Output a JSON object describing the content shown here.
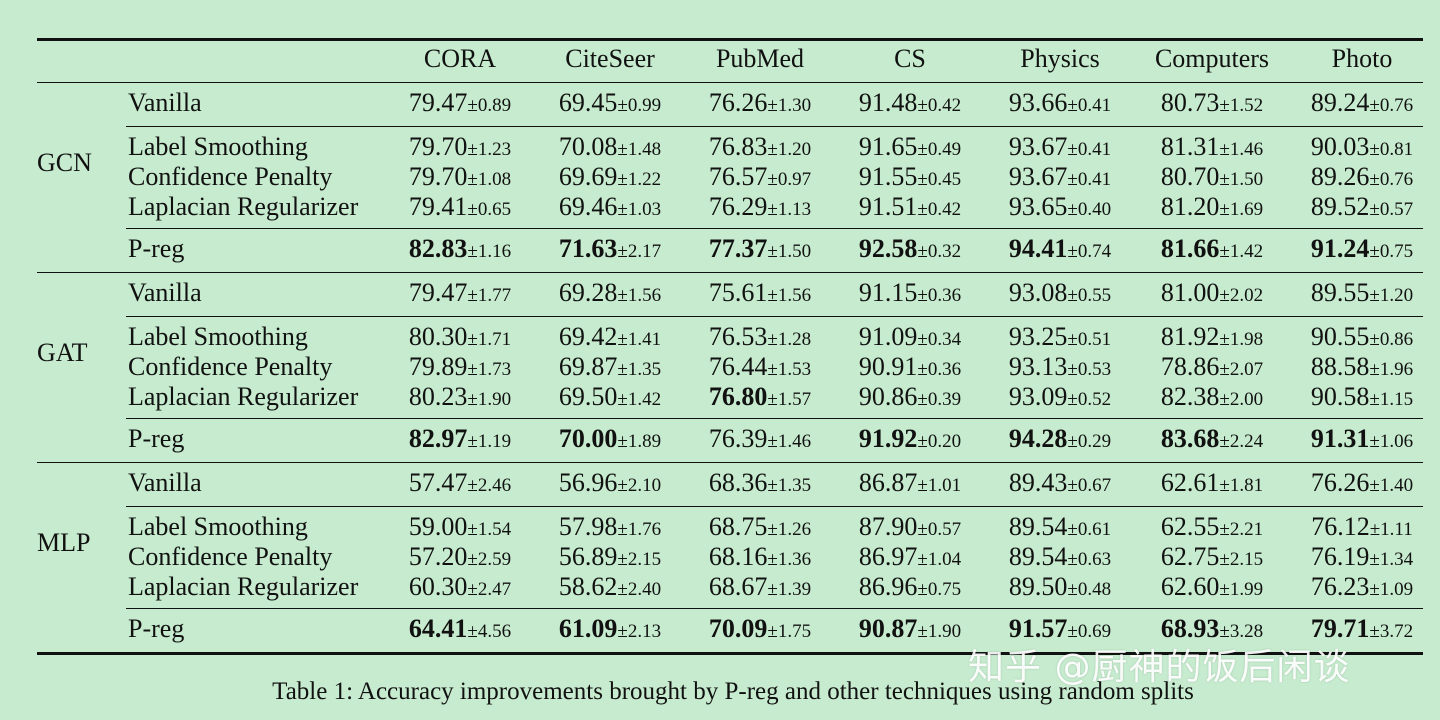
{
  "table": {
    "columns": [
      "CORA",
      "CiteSeer",
      "PubMed",
      "CS",
      "Physics",
      "Computers",
      "Photo"
    ],
    "groups": [
      {
        "name": "GCN",
        "rows": [
          {
            "method": "Vanilla",
            "cells": [
              {
                "mean": "79.47",
                "sd": "±0.89"
              },
              {
                "mean": "69.45",
                "sd": "±0.99"
              },
              {
                "mean": "76.26",
                "sd": "±1.30"
              },
              {
                "mean": "91.48",
                "sd": "±0.42"
              },
              {
                "mean": "93.66",
                "sd": "±0.41"
              },
              {
                "mean": "80.73",
                "sd": "±1.52"
              },
              {
                "mean": "89.24",
                "sd": "±0.76"
              }
            ]
          },
          {
            "method": "Label Smoothing",
            "cells": [
              {
                "mean": "79.70",
                "sd": "±1.23"
              },
              {
                "mean": "70.08",
                "sd": "±1.48"
              },
              {
                "mean": "76.83",
                "sd": "±1.20"
              },
              {
                "mean": "91.65",
                "sd": "±0.49"
              },
              {
                "mean": "93.67",
                "sd": "±0.41"
              },
              {
                "mean": "81.31",
                "sd": "±1.46"
              },
              {
                "mean": "90.03",
                "sd": "±0.81"
              }
            ]
          },
          {
            "method": "Confidence Penalty",
            "cells": [
              {
                "mean": "79.70",
                "sd": "±1.08"
              },
              {
                "mean": "69.69",
                "sd": "±1.22"
              },
              {
                "mean": "76.57",
                "sd": "±0.97"
              },
              {
                "mean": "91.55",
                "sd": "±0.45"
              },
              {
                "mean": "93.67",
                "sd": "±0.41"
              },
              {
                "mean": "80.70",
                "sd": "±1.50"
              },
              {
                "mean": "89.26",
                "sd": "±0.76"
              }
            ]
          },
          {
            "method": "Laplacian Regularizer",
            "cells": [
              {
                "mean": "79.41",
                "sd": "±0.65"
              },
              {
                "mean": "69.46",
                "sd": "±1.03"
              },
              {
                "mean": "76.29",
                "sd": "±1.13"
              },
              {
                "mean": "91.51",
                "sd": "±0.42"
              },
              {
                "mean": "93.65",
                "sd": "±0.40"
              },
              {
                "mean": "81.20",
                "sd": "±1.69"
              },
              {
                "mean": "89.52",
                "sd": "±0.57"
              }
            ]
          },
          {
            "method": "P-reg",
            "cells": [
              {
                "mean": "82.83",
                "sd": "±1.16",
                "bold": true
              },
              {
                "mean": "71.63",
                "sd": "±2.17",
                "bold": true
              },
              {
                "mean": "77.37",
                "sd": "±1.50",
                "bold": true
              },
              {
                "mean": "92.58",
                "sd": "±0.32",
                "bold": true
              },
              {
                "mean": "94.41",
                "sd": "±0.74",
                "bold": true
              },
              {
                "mean": "81.66",
                "sd": "±1.42",
                "bold": true
              },
              {
                "mean": "91.24",
                "sd": "±0.75",
                "bold": true
              }
            ]
          }
        ]
      },
      {
        "name": "GAT",
        "rows": [
          {
            "method": "Vanilla",
            "cells": [
              {
                "mean": "79.47",
                "sd": "±1.77"
              },
              {
                "mean": "69.28",
                "sd": "±1.56"
              },
              {
                "mean": "75.61",
                "sd": "±1.56"
              },
              {
                "mean": "91.15",
                "sd": "±0.36"
              },
              {
                "mean": "93.08",
                "sd": "±0.55"
              },
              {
                "mean": "81.00",
                "sd": "±2.02"
              },
              {
                "mean": "89.55",
                "sd": "±1.20"
              }
            ]
          },
          {
            "method": "Label Smoothing",
            "cells": [
              {
                "mean": "80.30",
                "sd": "±1.71"
              },
              {
                "mean": "69.42",
                "sd": "±1.41"
              },
              {
                "mean": "76.53",
                "sd": "±1.28"
              },
              {
                "mean": "91.09",
                "sd": "±0.34"
              },
              {
                "mean": "93.25",
                "sd": "±0.51"
              },
              {
                "mean": "81.92",
                "sd": "±1.98"
              },
              {
                "mean": "90.55",
                "sd": "±0.86"
              }
            ]
          },
          {
            "method": "Confidence Penalty",
            "cells": [
              {
                "mean": "79.89",
                "sd": "±1.73"
              },
              {
                "mean": "69.87",
                "sd": "±1.35"
              },
              {
                "mean": "76.44",
                "sd": "±1.53"
              },
              {
                "mean": "90.91",
                "sd": "±0.36"
              },
              {
                "mean": "93.13",
                "sd": "±0.53"
              },
              {
                "mean": "78.86",
                "sd": "±2.07"
              },
              {
                "mean": "88.58",
                "sd": "±1.96"
              }
            ]
          },
          {
            "method": "Laplacian Regularizer",
            "cells": [
              {
                "mean": "80.23",
                "sd": "±1.90"
              },
              {
                "mean": "69.50",
                "sd": "±1.42"
              },
              {
                "mean": "76.80",
                "sd": "±1.57",
                "bold": true
              },
              {
                "mean": "90.86",
                "sd": "±0.39"
              },
              {
                "mean": "93.09",
                "sd": "±0.52"
              },
              {
                "mean": "82.38",
                "sd": "±2.00"
              },
              {
                "mean": "90.58",
                "sd": "±1.15"
              }
            ]
          },
          {
            "method": "P-reg",
            "cells": [
              {
                "mean": "82.97",
                "sd": "±1.19",
                "bold": true
              },
              {
                "mean": "70.00",
                "sd": "±1.89",
                "bold": true
              },
              {
                "mean": "76.39",
                "sd": "±1.46"
              },
              {
                "mean": "91.92",
                "sd": "±0.20",
                "bold": true
              },
              {
                "mean": "94.28",
                "sd": "±0.29",
                "bold": true
              },
              {
                "mean": "83.68",
                "sd": "±2.24",
                "bold": true
              },
              {
                "mean": "91.31",
                "sd": "±1.06",
                "bold": true
              }
            ]
          }
        ]
      },
      {
        "name": "MLP",
        "rows": [
          {
            "method": "Vanilla",
            "cells": [
              {
                "mean": "57.47",
                "sd": "±2.46"
              },
              {
                "mean": "56.96",
                "sd": "±2.10"
              },
              {
                "mean": "68.36",
                "sd": "±1.35"
              },
              {
                "mean": "86.87",
                "sd": "±1.01"
              },
              {
                "mean": "89.43",
                "sd": "±0.67"
              },
              {
                "mean": "62.61",
                "sd": "±1.81"
              },
              {
                "mean": "76.26",
                "sd": "±1.40"
              }
            ]
          },
          {
            "method": "Label Smoothing",
            "cells": [
              {
                "mean": "59.00",
                "sd": "±1.54"
              },
              {
                "mean": "57.98",
                "sd": "±1.76"
              },
              {
                "mean": "68.75",
                "sd": "±1.26"
              },
              {
                "mean": "87.90",
                "sd": "±0.57"
              },
              {
                "mean": "89.54",
                "sd": "±0.61"
              },
              {
                "mean": "62.55",
                "sd": "±2.21"
              },
              {
                "mean": "76.12",
                "sd": "±1.11"
              }
            ]
          },
          {
            "method": "Confidence Penalty",
            "cells": [
              {
                "mean": "57.20",
                "sd": "±2.59"
              },
              {
                "mean": "56.89",
                "sd": "±2.15"
              },
              {
                "mean": "68.16",
                "sd": "±1.36"
              },
              {
                "mean": "86.97",
                "sd": "±1.04"
              },
              {
                "mean": "89.54",
                "sd": "±0.63"
              },
              {
                "mean": "62.75",
                "sd": "±2.15"
              },
              {
                "mean": "76.19",
                "sd": "±1.34"
              }
            ]
          },
          {
            "method": "Laplacian Regularizer",
            "cells": [
              {
                "mean": "60.30",
                "sd": "±2.47"
              },
              {
                "mean": "58.62",
                "sd": "±2.40"
              },
              {
                "mean": "68.67",
                "sd": "±1.39"
              },
              {
                "mean": "86.96",
                "sd": "±0.75"
              },
              {
                "mean": "89.50",
                "sd": "±0.48"
              },
              {
                "mean": "62.60",
                "sd": "±1.99"
              },
              {
                "mean": "76.23",
                "sd": "±1.09"
              }
            ]
          },
          {
            "method": "P-reg",
            "cells": [
              {
                "mean": "64.41",
                "sd": "±4.56",
                "bold": true
              },
              {
                "mean": "61.09",
                "sd": "±2.13",
                "bold": true
              },
              {
                "mean": "70.09",
                "sd": "±1.75",
                "bold": true
              },
              {
                "mean": "90.87",
                "sd": "±1.90",
                "bold": true
              },
              {
                "mean": "91.57",
                "sd": "±0.69",
                "bold": true
              },
              {
                "mean": "68.93",
                "sd": "±3.28",
                "bold": true
              },
              {
                "mean": "79.71",
                "sd": "±3.72",
                "bold": true
              }
            ]
          }
        ]
      }
    ]
  },
  "caption": "Table 1: Accuracy improvements brought by P-reg and other techniques using random splits",
  "watermark": "知乎 @厨神的饭后闲谈"
}
